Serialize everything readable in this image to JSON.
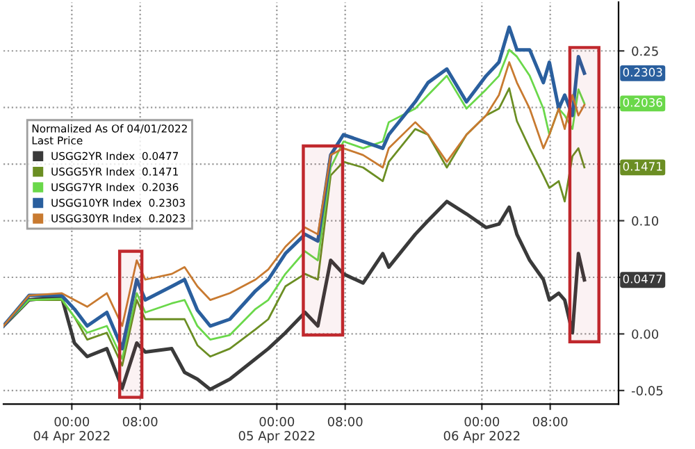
{
  "chart_data": {
    "type": "line",
    "legend_title": "Normalized As Of 04/01/2022\nLast Price",
    "legend": "top left",
    "grid": true,
    "line_style": "solid",
    "marker": "none",
    "x": [
      "2022-04-03T16:00",
      "2022-04-03T19:00",
      "2022-04-03T22:48",
      "2022-04-04T00:18",
      "2022-04-04T01:48",
      "2022-04-04T04:06",
      "2022-04-04T05:54",
      "2022-04-04T07:36",
      "2022-04-04T08:36",
      "2022-04-04T11:42",
      "2022-04-04T13:12",
      "2022-04-04T14:42",
      "2022-04-04T16:12",
      "2022-04-04T18:30",
      "2022-04-04T21:30",
      "2022-04-04T23:00",
      "2022-04-05T01:00",
      "2022-04-05T03:18",
      "2022-04-05T04:48",
      "2022-04-05T06:18",
      "2022-04-05T07:48",
      "2022-04-05T10:06",
      "2022-04-05T12:24",
      "2022-04-05T13:06",
      "2022-04-05T16:12",
      "2022-04-05T17:42",
      "2022-04-05T19:54",
      "2022-04-05T22:12",
      "2022-04-06T00:30",
      "2022-04-06T02:00",
      "2022-04-06T03:12",
      "2022-04-06T04:06",
      "2022-04-06T05:36",
      "2022-04-06T07:12",
      "2022-04-06T07:54",
      "2022-04-06T09:00",
      "2022-04-06T09:42",
      "2022-04-06T10:36",
      "2022-04-06T11:18",
      "2022-04-06T12:00"
    ],
    "xlim": [
      "2022-04-03T16:00",
      "2022-04-06T16:00"
    ],
    "xticks": [
      {
        "value": "2022-04-04T00:00",
        "label": "00:00\n04 Apr 2022"
      },
      {
        "value": "2022-04-04T08:00",
        "label": "08:00"
      },
      {
        "value": "2022-04-05T00:00",
        "label": "00:00\n05 Apr 2022"
      },
      {
        "value": "2022-04-05T08:00",
        "label": "08:00"
      },
      {
        "value": "2022-04-06T00:00",
        "label": "00:00\n06 Apr 2022"
      },
      {
        "value": "2022-04-06T08:00",
        "label": "08:00"
      }
    ],
    "ylim": [
      -0.062,
      0.293
    ],
    "yticks": [
      {
        "value": -0.05,
        "label": "-0.05"
      },
      {
        "value": 0.0,
        "label": "0.00"
      },
      {
        "value": 0.05,
        "label": null
      },
      {
        "value": 0.1,
        "label": "0.10"
      },
      {
        "value": 0.15,
        "label": null
      },
      {
        "value": 0.2,
        "label": null
      },
      {
        "value": 0.25,
        "label": "0.25"
      }
    ],
    "series": [
      {
        "name": "USGG2YR Index  0.0477",
        "color": "#3a3a3a",
        "values": [
          0.007,
          0.03,
          0.033,
          -0.008,
          -0.02,
          -0.013,
          -0.048,
          -0.008,
          -0.016,
          -0.013,
          -0.034,
          -0.04,
          -0.049,
          -0.04,
          -0.022,
          -0.013,
          0.001,
          0.019,
          0.007,
          0.065,
          0.053,
          0.045,
          0.071,
          0.059,
          0.088,
          0.1,
          0.117,
          0.106,
          0.094,
          0.097,
          0.112,
          0.088,
          0.065,
          0.048,
          0.03,
          0.036,
          0.03,
          0.001,
          0.071,
          0.0477
        ]
      },
      {
        "name": "USGG5YR Index  0.1471",
        "color": "#6b8e23",
        "values": [
          0.007,
          0.03,
          0.03,
          0.015,
          -0.005,
          0.001,
          -0.028,
          0.03,
          0.013,
          0.013,
          0.013,
          -0.01,
          -0.02,
          -0.013,
          0.004,
          0.013,
          0.042,
          0.053,
          0.048,
          0.14,
          0.152,
          0.147,
          0.135,
          0.152,
          0.181,
          0.176,
          0.147,
          0.176,
          0.193,
          0.199,
          0.217,
          0.188,
          0.164,
          0.14,
          0.129,
          0.135,
          0.117,
          0.157,
          0.164,
          0.1471
        ]
      },
      {
        "name": "USGG7YR Index  0.2036",
        "color": "#6ad84a",
        "values": [
          0.007,
          0.03,
          0.031,
          0.015,
          0.001,
          0.007,
          -0.022,
          0.036,
          0.019,
          0.027,
          0.03,
          0.007,
          -0.005,
          -0.001,
          0.022,
          0.03,
          0.053,
          0.073,
          0.065,
          0.147,
          0.17,
          0.164,
          0.17,
          0.187,
          0.199,
          0.211,
          0.228,
          0.199,
          0.216,
          0.228,
          0.251,
          0.245,
          0.228,
          0.199,
          0.176,
          0.199,
          0.193,
          0.181,
          0.216,
          0.2036
        ]
      },
      {
        "name": "USGG10YR Index  0.2303",
        "color": "#2a5f9e",
        "values": [
          0.007,
          0.034,
          0.034,
          0.022,
          0.007,
          0.019,
          -0.013,
          0.048,
          0.03,
          0.042,
          0.048,
          0.021,
          0.007,
          0.013,
          0.038,
          0.048,
          0.071,
          0.088,
          0.082,
          0.158,
          0.176,
          0.17,
          0.164,
          0.176,
          0.205,
          0.222,
          0.234,
          0.205,
          0.228,
          0.24,
          0.271,
          0.251,
          0.251,
          0.222,
          0.24,
          0.199,
          0.211,
          0.193,
          0.245,
          0.2303
        ]
      },
      {
        "name": "USGG30YR Index  0.2023",
        "color": "#c87a30",
        "values": [
          0.007,
          0.034,
          0.036,
          0.03,
          0.024,
          0.036,
          0.007,
          0.065,
          0.048,
          0.053,
          0.059,
          0.042,
          0.03,
          0.036,
          0.048,
          0.057,
          0.077,
          0.094,
          0.088,
          0.158,
          0.164,
          0.158,
          0.147,
          0.164,
          0.187,
          0.176,
          0.152,
          0.176,
          0.193,
          0.211,
          0.24,
          0.222,
          0.199,
          0.164,
          0.176,
          0.199,
          0.181,
          0.211,
          0.193,
          0.2023
        ]
      }
    ],
    "annotations": [
      "0.2303",
      "0.2036",
      "0.1471",
      "0.0477"
    ],
    "bands": [
      {
        "axis": "x",
        "from": "2022-04-04T05:36",
        "to": "2022-04-04T08:12",
        "color": "#c0282d"
      },
      {
        "axis": "x",
        "from": "2022-04-05T03:06",
        "to": "2022-04-05T07:42",
        "color": "#c0282d"
      },
      {
        "axis": "x",
        "from": "2022-04-06T10:18",
        "to": "2022-04-06T13:42",
        "color": "#c0282d"
      }
    ]
  }
}
